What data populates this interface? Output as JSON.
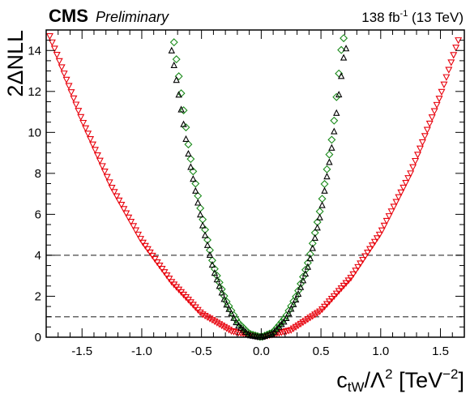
{
  "header": {
    "experiment": "CMS",
    "status": "Preliminary",
    "lumi_value": "138 fb",
    "lumi_exponent": "-1",
    "lumi_energy": "(13 TeV)"
  },
  "chart_data": {
    "type": "scatter",
    "title": "",
    "xlabel": {
      "base": "c",
      "subscript": "tW",
      "middle": "/Λ",
      "superscript": "2",
      "unit_open": "[TeV",
      "unit_exponent": "−2",
      "unit_close": "]"
    },
    "ylabel": "2ΔNLL",
    "xlim": [
      -1.8,
      1.7
    ],
    "ylim": [
      0,
      15
    ],
    "xticks": [
      -1.5,
      -1.0,
      -0.5,
      0.0,
      0.5,
      1.0,
      1.5
    ],
    "xtick_labels": [
      "-1.5",
      "-1.0",
      "-0.5",
      "0.0",
      "0.5",
      "1.0",
      "1.5"
    ],
    "yticks": [
      0,
      2,
      4,
      6,
      8,
      10,
      12,
      14
    ],
    "ytick_labels": [
      "0",
      "2",
      "4",
      "6",
      "8",
      "10",
      "12",
      "14"
    ],
    "reference_lines": [
      1,
      4
    ],
    "reference_line_color": "#666666",
    "grid": false,
    "series": [
      {
        "marker": "triangle-down",
        "color": "#e8000b",
        "x_range": [
          -1.77,
          1.65
        ],
        "x_step": 0.02,
        "points": [
          [
            -1.77,
            14.7
          ],
          [
            -1.5,
            10.6
          ],
          [
            -1.25,
            7.3
          ],
          [
            -1.0,
            4.7
          ],
          [
            -0.75,
            2.7
          ],
          [
            -0.5,
            1.15
          ],
          [
            -0.25,
            0.3
          ],
          [
            0.0,
            0.0
          ],
          [
            0.25,
            0.35
          ],
          [
            0.5,
            1.3
          ],
          [
            0.75,
            2.9
          ],
          [
            1.0,
            5.1
          ],
          [
            1.25,
            8.0
          ],
          [
            1.5,
            11.8
          ],
          [
            1.65,
            14.5
          ]
        ]
      },
      {
        "marker": "diamond",
        "color": "#1a8a1a",
        "x_range": [
          -0.73,
          0.68
        ],
        "x_step": 0.02,
        "points": [
          [
            -0.73,
            14.4
          ],
          [
            -0.6,
            9.0
          ],
          [
            -0.5,
            6.0
          ],
          [
            -0.4,
            3.5
          ],
          [
            -0.3,
            1.85
          ],
          [
            -0.2,
            0.75
          ],
          [
            -0.1,
            0.17
          ],
          [
            0.0,
            0.0
          ],
          [
            0.1,
            0.25
          ],
          [
            0.2,
            0.95
          ],
          [
            0.3,
            2.1
          ],
          [
            0.4,
            3.8
          ],
          [
            0.5,
            6.4
          ],
          [
            0.6,
            10.0
          ],
          [
            0.68,
            14.6
          ]
        ]
      },
      {
        "marker": "triangle-up",
        "color": "#000000",
        "x_range": [
          -0.75,
          0.7
        ],
        "x_step": 0.02,
        "points": [
          [
            -0.75,
            14.0
          ],
          [
            -0.6,
            8.6
          ],
          [
            -0.5,
            5.7
          ],
          [
            -0.4,
            3.3
          ],
          [
            -0.3,
            1.7
          ],
          [
            -0.2,
            0.62
          ],
          [
            -0.1,
            0.1
          ],
          [
            0.0,
            0.0
          ],
          [
            0.1,
            0.2
          ],
          [
            0.2,
            0.82
          ],
          [
            0.3,
            1.95
          ],
          [
            0.4,
            3.6
          ],
          [
            0.5,
            6.1
          ],
          [
            0.6,
            9.6
          ],
          [
            0.7,
            14.1
          ]
        ]
      }
    ]
  }
}
